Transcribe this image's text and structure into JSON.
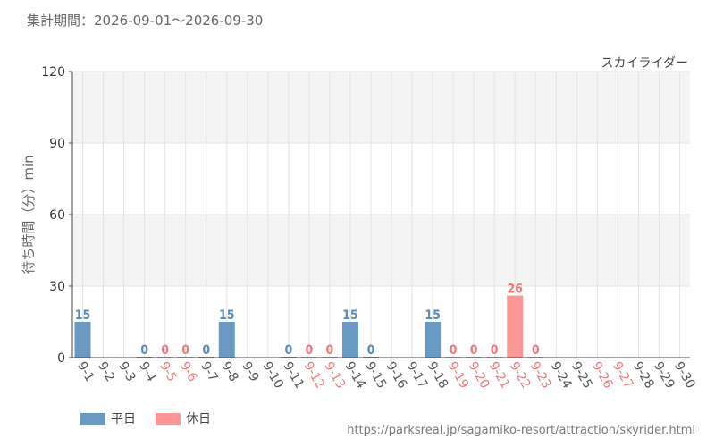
{
  "header": {
    "period_text": "集計期間：2026-09-01～2026-09-30"
  },
  "chart_data": {
    "type": "bar",
    "subtitle": "スカイライダー",
    "ylabel": "待ち時間（分）min",
    "ylim": [
      0,
      120
    ],
    "yticks": [
      0,
      30,
      60,
      90,
      120
    ],
    "grid": true,
    "categories": [
      "9-1",
      "9-2",
      "9-3",
      "9-4",
      "9-5",
      "9-6",
      "9-7",
      "9-8",
      "9-9",
      "9-10",
      "9-11",
      "9-12",
      "9-13",
      "9-14",
      "9-15",
      "9-16",
      "9-17",
      "9-18",
      "9-19",
      "9-20",
      "9-21",
      "9-22",
      "9-23",
      "9-24",
      "9-25",
      "9-26",
      "9-27",
      "9-28",
      "9-29",
      "9-30"
    ],
    "values": [
      15,
      null,
      null,
      0,
      0,
      0,
      0,
      15,
      null,
      null,
      0,
      0,
      0,
      15,
      0,
      null,
      null,
      15,
      0,
      0,
      0,
      26,
      0,
      null,
      null,
      null,
      null,
      null,
      null,
      null
    ],
    "day_type": [
      "weekday",
      "weekday",
      "weekday",
      "weekday",
      "holiday",
      "holiday",
      "weekday",
      "weekday",
      "weekday",
      "weekday",
      "weekday",
      "holiday",
      "holiday",
      "weekday",
      "weekday",
      "weekday",
      "weekday",
      "weekday",
      "holiday",
      "holiday",
      "holiday",
      "holiday",
      "holiday",
      "weekday",
      "weekday",
      "holiday",
      "holiday",
      "weekday",
      "weekday",
      "weekday"
    ],
    "legend": [
      {
        "key": "weekday",
        "label": "平日",
        "color": "#6a9ac4"
      },
      {
        "key": "holiday",
        "label": "休日",
        "color": "#ff9696"
      }
    ],
    "legend_position": "bottom-left"
  },
  "colors": {
    "weekday_bar": "#6a9ac4",
    "holiday_bar": "#ff9696",
    "weekday_label": "#5a8ab8",
    "holiday_label": "#f07878",
    "holiday_tick": "#f07878",
    "weekday_tick": "#555555",
    "band": "#f4f4f4",
    "grid": "#e3e3e3"
  },
  "footer": {
    "source_url": "https://parksreal.jp/sagamiko-resort/attraction/skyrider.html"
  }
}
